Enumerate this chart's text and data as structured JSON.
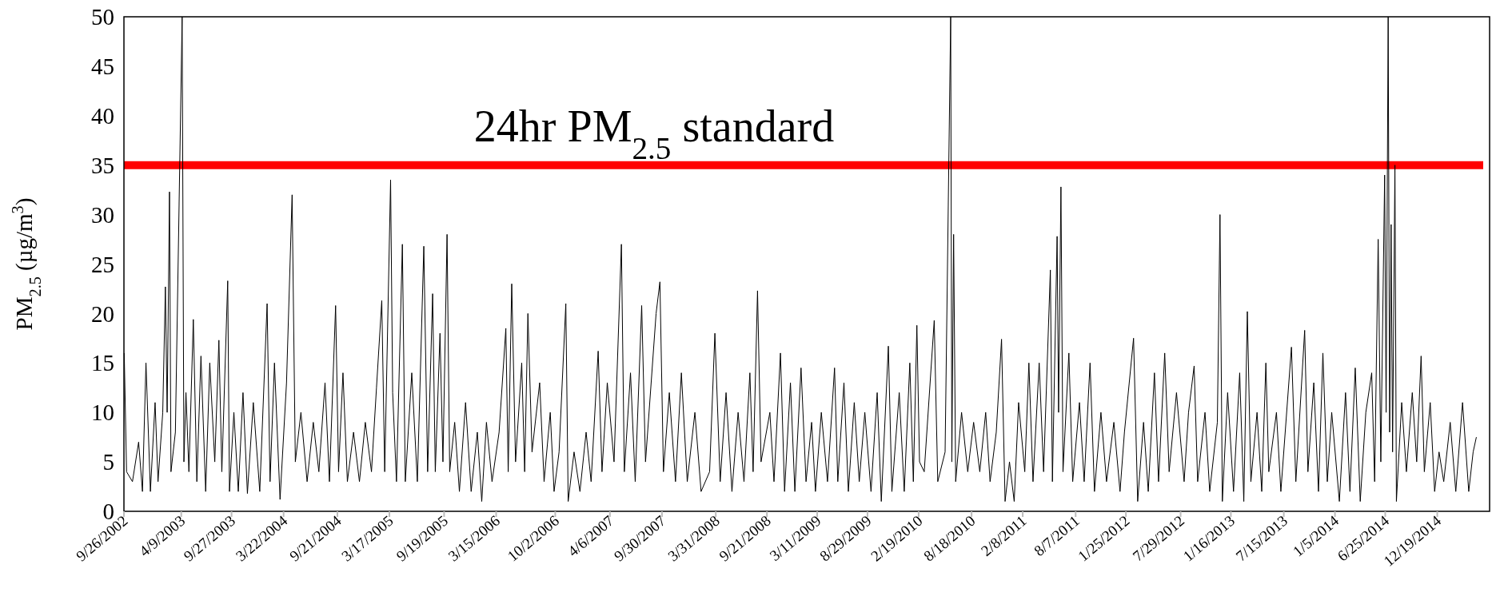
{
  "chart_data": {
    "type": "line",
    "ylabel": "PM$_{2.5}$  (µg/m$^{3}$)",
    "xlim": [
      "2002-09-26",
      "2015-06-15"
    ],
    "ylim": [
      0,
      50
    ],
    "yticks": [
      0,
      5,
      10,
      15,
      20,
      25,
      30,
      35,
      40,
      45,
      50
    ],
    "xticks": [
      {
        "value": "2002-09-26",
        "label": "9/26/2002"
      },
      {
        "value": "2003-04-09",
        "label": "4/9/2003"
      },
      {
        "value": "2003-09-27",
        "label": "9/27/2003"
      },
      {
        "value": "2004-03-22",
        "label": "3/22/2004"
      },
      {
        "value": "2004-09-21",
        "label": "9/21/2004"
      },
      {
        "value": "2005-03-17",
        "label": "3/17/2005"
      },
      {
        "value": "2005-09-19",
        "label": "9/19/2005"
      },
      {
        "value": "2006-03-15",
        "label": "3/15/2006"
      },
      {
        "value": "2006-10-02",
        "label": "10/2/2006"
      },
      {
        "value": "2007-04-06",
        "label": "4/6/2007"
      },
      {
        "value": "2007-09-30",
        "label": "9/30/2007"
      },
      {
        "value": "2008-03-31",
        "label": "3/31/2008"
      },
      {
        "value": "2008-09-21",
        "label": "9/21/2008"
      },
      {
        "value": "2009-03-11",
        "label": "3/11/2009"
      },
      {
        "value": "2009-08-29",
        "label": "8/29/2009"
      },
      {
        "value": "2010-02-19",
        "label": "2/19/2010"
      },
      {
        "value": "2010-08-18",
        "label": "8/18/2010"
      },
      {
        "value": "2011-02-08",
        "label": "2/8/2011"
      },
      {
        "value": "2011-08-07",
        "label": "8/7/2011"
      },
      {
        "value": "2012-01-25",
        "label": "1/25/2012"
      },
      {
        "value": "2012-07-29",
        "label": "7/29/2012"
      },
      {
        "value": "2013-01-16",
        "label": "1/16/2013"
      },
      {
        "value": "2013-07-15",
        "label": "7/15/2013"
      },
      {
        "value": "2014-01-05",
        "label": "1/5/2014"
      },
      {
        "value": "2014-06-25",
        "label": "6/25/2014"
      },
      {
        "value": "2014-12-19",
        "label": "12/19/2014"
      }
    ],
    "grid": false,
    "line_style": "solid",
    "marker": "none",
    "ref_lines": [
      {
        "axis": "y",
        "value": 35,
        "label": "24hr PM$_{2.5}$ standard",
        "color": "#ff0000"
      }
    ],
    "series": [
      {
        "color": "#000000",
        "x": [
          "2002-09-27",
          "2002-10-05",
          "2002-10-25",
          "2002-11-15",
          "2002-11-28",
          "2002-12-10",
          "2002-12-25",
          "2003-01-10",
          "2003-01-20",
          "2003-02-05",
          "2003-02-14",
          "2003-02-20",
          "2003-02-28",
          "2003-03-05",
          "2003-03-20",
          "2003-04-12",
          "2003-04-18",
          "2003-04-25",
          "2003-05-05",
          "2003-05-20",
          "2003-06-01",
          "2003-06-15",
          "2003-07-01",
          "2003-07-15",
          "2003-08-01",
          "2003-08-15",
          "2003-08-25",
          "2003-09-14",
          "2003-09-20",
          "2003-10-05",
          "2003-10-20",
          "2003-11-05",
          "2003-11-20",
          "2003-12-10",
          "2004-01-01",
          "2004-01-26",
          "2004-02-05",
          "2004-02-20",
          "2004-03-10",
          "2004-04-01",
          "2004-04-20",
          "2004-05-01",
          "2004-05-20",
          "2004-06-10",
          "2004-07-01",
          "2004-07-20",
          "2004-08-10",
          "2004-08-25",
          "2004-09-15",
          "2004-09-25",
          "2004-10-10",
          "2004-10-25",
          "2004-11-15",
          "2004-12-05",
          "2004-12-25",
          "2005-01-15",
          "2005-02-01",
          "2005-02-19",
          "2005-03-01",
          "2005-03-21",
          "2005-03-28",
          "2005-04-10",
          "2005-04-30",
          "2005-05-10",
          "2005-06-01",
          "2005-06-20",
          "2005-07-12",
          "2005-07-25",
          "2005-08-11",
          "2005-08-20",
          "2005-09-05",
          "2005-09-15",
          "2005-09-29",
          "2005-10-08",
          "2005-10-25",
          "2005-11-10",
          "2005-12-01",
          "2005-12-20",
          "2006-01-10",
          "2006-01-25",
          "2006-02-10",
          "2006-03-01",
          "2006-03-25",
          "2006-04-17",
          "2006-04-25",
          "2006-05-07",
          "2006-05-20",
          "2006-06-10",
          "2006-06-20",
          "2006-07-01",
          "2006-07-15",
          "2006-08-10",
          "2006-08-25",
          "2006-09-15",
          "2006-09-28",
          "2006-10-15",
          "2006-11-07",
          "2006-11-15",
          "2006-12-05",
          "2006-12-25",
          "2007-01-15",
          "2007-02-01",
          "2007-02-25",
          "2007-03-10",
          "2007-03-28",
          "2007-04-20",
          "2007-05-15",
          "2007-05-25",
          "2007-06-15",
          "2007-07-01",
          "2007-07-23",
          "2007-08-05",
          "2007-09-10",
          "2007-09-23",
          "2007-10-05",
          "2007-10-25",
          "2007-11-15",
          "2007-12-05",
          "2007-12-25",
          "2008-01-20",
          "2008-02-10",
          "2008-03-10",
          "2008-03-28",
          "2008-04-15",
          "2008-05-05",
          "2008-05-25",
          "2008-06-15",
          "2008-07-05",
          "2008-07-25",
          "2008-08-05",
          "2008-08-20",
          "2008-09-01",
          "2008-10-01",
          "2008-10-15",
          "2008-11-06",
          "2008-11-20",
          "2008-12-10",
          "2008-12-25",
          "2009-01-15",
          "2009-02-01",
          "2009-02-20",
          "2009-03-05",
          "2009-03-25",
          "2009-04-15",
          "2009-05-09",
          "2009-05-20",
          "2009-06-10",
          "2009-06-25",
          "2009-07-15",
          "2009-08-01",
          "2009-08-20",
          "2009-09-10",
          "2009-10-01",
          "2009-10-15",
          "2009-11-08",
          "2009-11-20",
          "2009-12-15",
          "2010-01-01",
          "2010-01-20",
          "2010-02-01",
          "2010-02-13",
          "2010-02-22",
          "2010-03-10",
          "2010-04-13",
          "2010-04-25",
          "2010-05-20",
          "2010-06-08",
          "2010-06-12",
          "2010-06-18",
          "2010-06-25",
          "2010-07-15",
          "2010-08-05",
          "2010-08-25",
          "2010-09-15",
          "2010-10-05",
          "2010-10-20",
          "2010-11-10",
          "2010-11-28",
          "2010-12-10",
          "2010-12-25",
          "2011-01-10",
          "2011-01-25",
          "2011-02-15",
          "2011-03-01",
          "2011-03-15",
          "2011-04-05",
          "2011-04-20",
          "2011-05-13",
          "2011-05-20",
          "2011-06-05",
          "2011-06-10",
          "2011-06-18",
          "2011-06-25",
          "2011-07-15",
          "2011-07-28",
          "2011-08-20",
          "2011-09-05",
          "2011-09-25",
          "2011-10-10",
          "2011-11-01",
          "2011-11-20",
          "2011-12-15",
          "2012-01-05",
          "2012-01-20",
          "2012-02-20",
          "2012-03-05",
          "2012-03-25",
          "2012-04-10",
          "2012-05-01",
          "2012-05-15",
          "2012-06-05",
          "2012-06-20",
          "2012-07-15",
          "2012-08-10",
          "2012-08-25",
          "2012-09-13",
          "2012-09-25",
          "2012-10-20",
          "2012-11-05",
          "2012-12-01",
          "2012-12-10",
          "2012-12-18",
          "2013-01-05",
          "2013-01-25",
          "2013-02-15",
          "2013-03-01",
          "2013-03-13",
          "2013-03-25",
          "2013-04-15",
          "2013-05-01",
          "2013-05-15",
          "2013-05-25",
          "2013-06-20",
          "2013-07-05",
          "2013-08-10",
          "2013-08-25",
          "2013-09-24",
          "2013-10-05",
          "2013-10-25",
          "2013-11-10",
          "2013-11-25",
          "2013-12-10",
          "2013-12-25",
          "2014-01-20",
          "2014-02-10",
          "2014-02-25",
          "2014-03-15",
          "2014-04-01",
          "2014-04-20",
          "2014-05-10",
          "2014-05-20",
          "2014-06-01",
          "2014-06-10",
          "2014-06-23",
          "2014-06-28",
          "2014-07-05",
          "2014-07-10",
          "2014-07-15",
          "2014-07-20",
          "2014-07-28",
          "2014-08-02",
          "2014-08-20",
          "2014-09-05",
          "2014-09-25",
          "2014-10-10",
          "2014-10-25",
          "2014-11-05",
          "2014-11-25",
          "2014-12-10",
          "2014-12-25",
          "2015-01-10",
          "2015-02-01",
          "2015-02-20",
          "2015-03-15",
          "2015-04-05",
          "2015-04-20",
          "2015-05-01"
        ],
        "values": [
          16,
          4,
          3,
          7,
          2,
          15,
          2,
          11,
          3,
          10,
          22.7,
          10,
          32.3,
          4,
          8,
          50,
          5,
          12,
          4,
          19.4,
          3,
          15.7,
          2,
          15,
          5,
          17.3,
          4,
          23.3,
          2,
          10,
          2,
          12,
          1.8,
          11,
          2,
          21,
          3,
          15,
          1.2,
          13,
          32,
          5,
          10,
          3,
          9,
          4,
          13,
          3,
          20.8,
          4,
          14,
          3,
          8,
          3,
          9,
          4,
          12.5,
          21.3,
          4,
          33.5,
          12,
          3,
          27,
          3,
          14,
          3,
          26.8,
          4,
          22,
          4,
          18,
          5,
          28,
          4,
          9,
          2,
          11,
          2,
          8,
          1,
          9,
          3,
          8,
          18.5,
          4,
          23,
          5,
          15,
          4,
          20,
          6,
          13,
          3,
          10,
          2,
          6,
          21,
          1,
          6,
          2,
          8,
          3,
          16.2,
          4,
          13,
          5,
          27,
          4,
          14,
          3,
          20.8,
          5,
          20,
          23.2,
          4,
          12,
          3,
          14,
          3,
          10,
          2,
          4,
          18,
          3,
          12,
          2,
          10,
          3,
          14,
          4,
          22.3,
          5,
          10,
          3,
          16,
          2,
          13,
          2,
          14.5,
          3,
          9,
          2,
          10,
          3,
          14.5,
          3,
          13,
          2,
          11,
          3,
          10,
          2,
          12,
          1,
          16.7,
          2,
          12,
          2,
          15,
          3,
          18.8,
          5,
          4,
          19.3,
          3,
          6,
          50,
          5,
          28,
          3,
          10,
          4,
          9,
          4,
          10,
          3,
          8,
          17.4,
          1,
          5,
          1,
          11,
          4,
          15,
          3,
          15,
          4,
          24.4,
          3,
          27.8,
          10,
          32.8,
          4,
          16,
          3,
          11,
          3,
          15,
          2,
          10,
          3,
          9,
          2,
          8,
          17.5,
          1,
          9,
          2,
          14,
          3,
          16,
          4,
          12,
          3,
          10,
          14.7,
          3,
          10,
          2,
          9,
          30,
          1,
          12,
          2,
          14,
          1,
          20.2,
          3,
          10,
          2,
          15,
          4,
          10,
          2,
          16.6,
          3,
          18.3,
          4,
          13,
          2,
          16,
          3,
          10,
          1,
          12,
          2,
          14.5,
          1,
          10,
          14,
          3,
          27.5,
          5,
          34,
          10,
          50,
          8,
          29,
          6,
          35,
          1,
          11,
          4,
          12,
          5,
          15.7,
          4,
          11,
          2,
          6,
          3,
          9,
          2,
          11,
          2,
          6,
          7.5
        ]
      }
    ]
  }
}
